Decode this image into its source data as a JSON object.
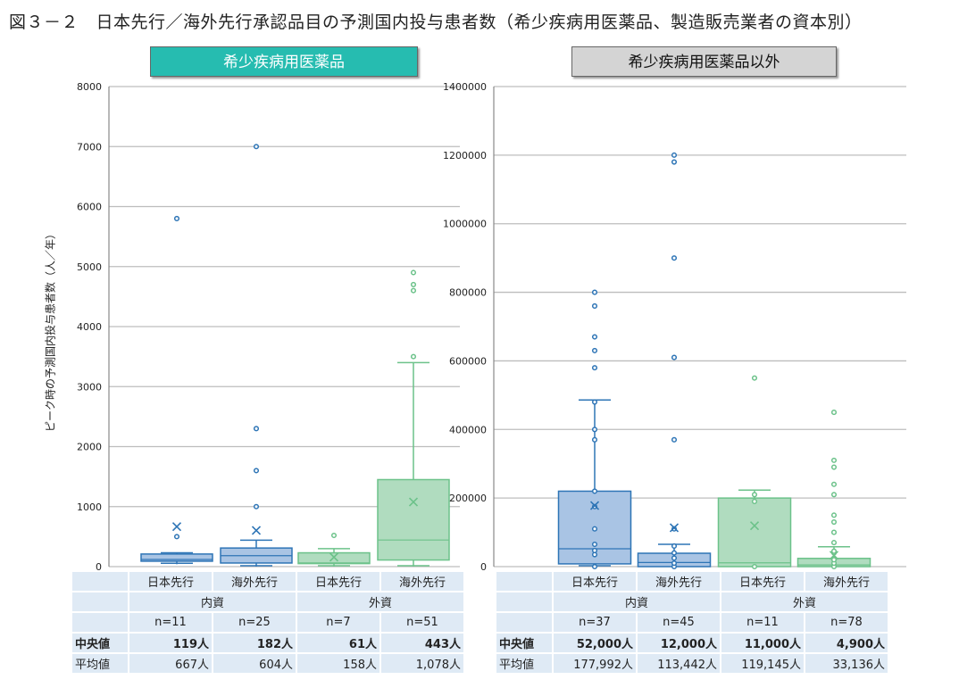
{
  "title": "図３－２　日本先行／海外先行承認品目の予測国内投与患者数（希少疾病用医薬品、製造販売業者の資本別）",
  "colors": {
    "blue_stroke": "#2e75b6",
    "blue_fill": "#a9c4e4",
    "green_stroke": "#6cc28a",
    "green_fill": "#b0dcbf",
    "header_left": "#26bcb0",
    "header_right": "#d4d4d4",
    "table_bg": "#dfeaf5"
  },
  "chart_data": [
    {
      "type": "box",
      "panel_title": "希少疾病用医薬品",
      "ylabel": "ピーク時の予測国内投与患者数（人／年）",
      "ylim": [
        0,
        8000
      ],
      "yticks": [
        "0",
        "1000",
        "2000",
        "3000",
        "4000",
        "5000",
        "6000",
        "7000",
        "8000"
      ],
      "grid": true,
      "categories": [
        "日本先行",
        "海外先行",
        "日本先行",
        "海外先行"
      ],
      "groups": [
        "内資",
        "外資"
      ],
      "boxes": [
        {
          "color": "blue",
          "q1": 90,
          "median": 119,
          "q3": 210,
          "whisker_low": 40,
          "whisker_high": 230,
          "mean": 667,
          "outliers": [
            500,
            5800
          ]
        },
        {
          "color": "blue",
          "q1": 60,
          "median": 182,
          "q3": 310,
          "whisker_low": 0,
          "whisker_high": 440,
          "mean": 604,
          "outliers": [
            1000,
            1600,
            2300,
            7000
          ]
        },
        {
          "color": "green",
          "q1": 50,
          "median": 61,
          "q3": 230,
          "whisker_low": 0,
          "whisker_high": 300,
          "mean": 158,
          "outliers": [
            520
          ]
        },
        {
          "color": "green",
          "q1": 110,
          "median": 443,
          "q3": 1450,
          "whisker_low": 0,
          "whisker_high": 3400,
          "mean": 1078,
          "outliers": [
            3500,
            4600,
            4700,
            4900
          ]
        }
      ],
      "table": {
        "headers": [
          "日本先行",
          "海外先行",
          "日本先行",
          "海外先行"
        ],
        "groups": [
          "内資",
          "外資"
        ],
        "n": [
          "n=11",
          "n=25",
          "n=7",
          "n=51"
        ],
        "median_label": "中央値",
        "medians": [
          "119人",
          "182人",
          "61人",
          "443人"
        ],
        "mean_label": "平均値",
        "means": [
          "667人",
          "604人",
          "158人",
          "1,078人"
        ]
      }
    },
    {
      "type": "box",
      "panel_title": "希少疾病用医薬品以外",
      "ylim": [
        0,
        1400000
      ],
      "yticks": [
        "0",
        "200000",
        "400000",
        "600000",
        "800000",
        "1000000",
        "1200000",
        "1400000"
      ],
      "grid": true,
      "categories": [
        "日本先行",
        "海外先行",
        "日本先行",
        "海外先行"
      ],
      "groups": [
        "内資",
        "外資"
      ],
      "boxes": [
        {
          "color": "blue",
          "q1": 8000,
          "median": 52000,
          "q3": 220000,
          "whisker_low": 0,
          "whisker_high": 486000,
          "mean": 177992,
          "points": [
            0,
            35000,
            47000,
            65000,
            110000,
            175000,
            220000,
            370000,
            400000,
            480000
          ],
          "outliers": [
            580000,
            630000,
            670000,
            760000,
            800000
          ]
        },
        {
          "color": "blue",
          "q1": 0,
          "median": 12000,
          "q3": 39000,
          "whisker_low": 0,
          "whisker_high": 65000,
          "mean": 113442,
          "points": [
            0,
            10000,
            25000,
            40000,
            60000,
            110000
          ],
          "outliers": [
            370000,
            610000,
            900000,
            1180000,
            1200000
          ]
        },
        {
          "color": "green",
          "q1": 0,
          "median": 11000,
          "q3": 200000,
          "whisker_low": 0,
          "whisker_high": 223000,
          "mean": 119145,
          "points": [
            0,
            190000,
            210000
          ],
          "outliers": [
            550000
          ]
        },
        {
          "color": "green",
          "q1": 0,
          "median": 4900,
          "q3": 24000,
          "whisker_low": 0,
          "whisker_high": 58000,
          "mean": 33136,
          "points": [
            0,
            10000,
            20000,
            40000,
            45000
          ],
          "outliers": [
            70000,
            100000,
            130000,
            150000,
            210000,
            240000,
            290000,
            310000,
            450000
          ]
        }
      ],
      "table": {
        "headers": [
          "日本先行",
          "海外先行",
          "日本先行",
          "海外先行"
        ],
        "groups": [
          "内資",
          "外資"
        ],
        "n": [
          "n=37",
          "n=45",
          "n=11",
          "n=78"
        ],
        "median_label": "中央値",
        "medians": [
          "52,000人",
          "12,000人",
          "11,000人",
          "4,900人"
        ],
        "mean_label": "平均値",
        "means": [
          "177,992人",
          "113,442人",
          "119,145人",
          "33,136人"
        ]
      }
    }
  ]
}
